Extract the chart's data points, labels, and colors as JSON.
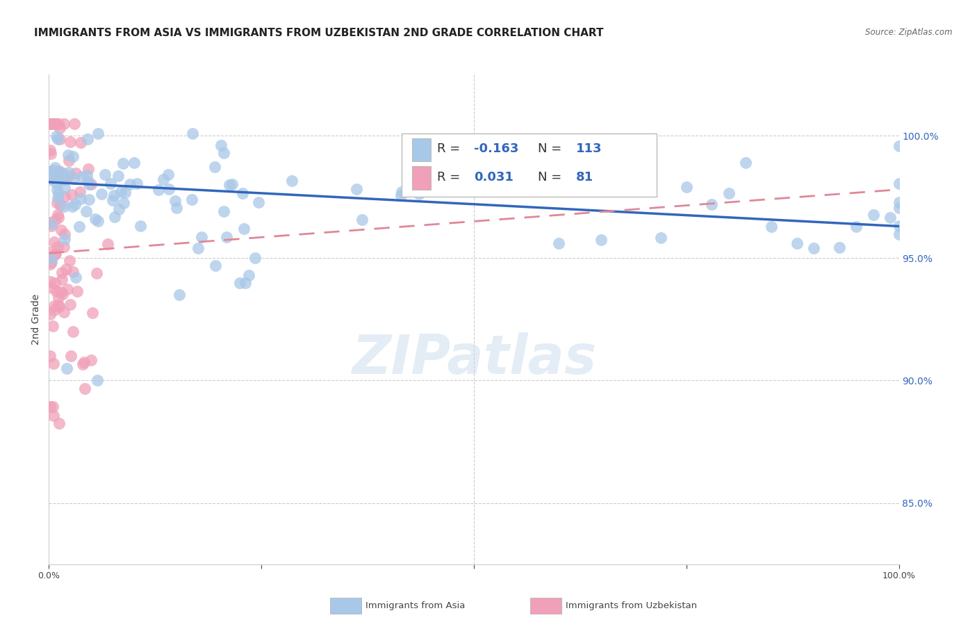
{
  "title": "IMMIGRANTS FROM ASIA VS IMMIGRANTS FROM UZBEKISTAN 2ND GRADE CORRELATION CHART",
  "source_text": "Source: ZipAtlas.com",
  "ylabel": "2nd Grade",
  "watermark": "ZIPatlas",
  "blue_color": "#a8c8e8",
  "pink_color": "#f0a0b8",
  "blue_line_color": "#3366bb",
  "pink_line_color": "#e08898",
  "right_ytick_labels": [
    "100.0%",
    "95.0%",
    "90.0%",
    "85.0%"
  ],
  "right_ytick_values": [
    1.0,
    0.95,
    0.9,
    0.85
  ],
  "ymin": 0.825,
  "ymax": 1.025,
  "xmin": 0.0,
  "xmax": 1.0,
  "blue_R": -0.163,
  "blue_N": 113,
  "pink_R": 0.031,
  "pink_N": 81,
  "blue_line_x0": 0.0,
  "blue_line_y0": 0.981,
  "blue_line_x1": 1.0,
  "blue_line_y1": 0.963,
  "pink_line_x0": 0.0,
  "pink_line_y0": 0.952,
  "pink_line_x1": 1.0,
  "pink_line_y1": 0.978,
  "title_fontsize": 11,
  "axis_label_fontsize": 10,
  "tick_fontsize": 9,
  "legend_fontsize": 13
}
